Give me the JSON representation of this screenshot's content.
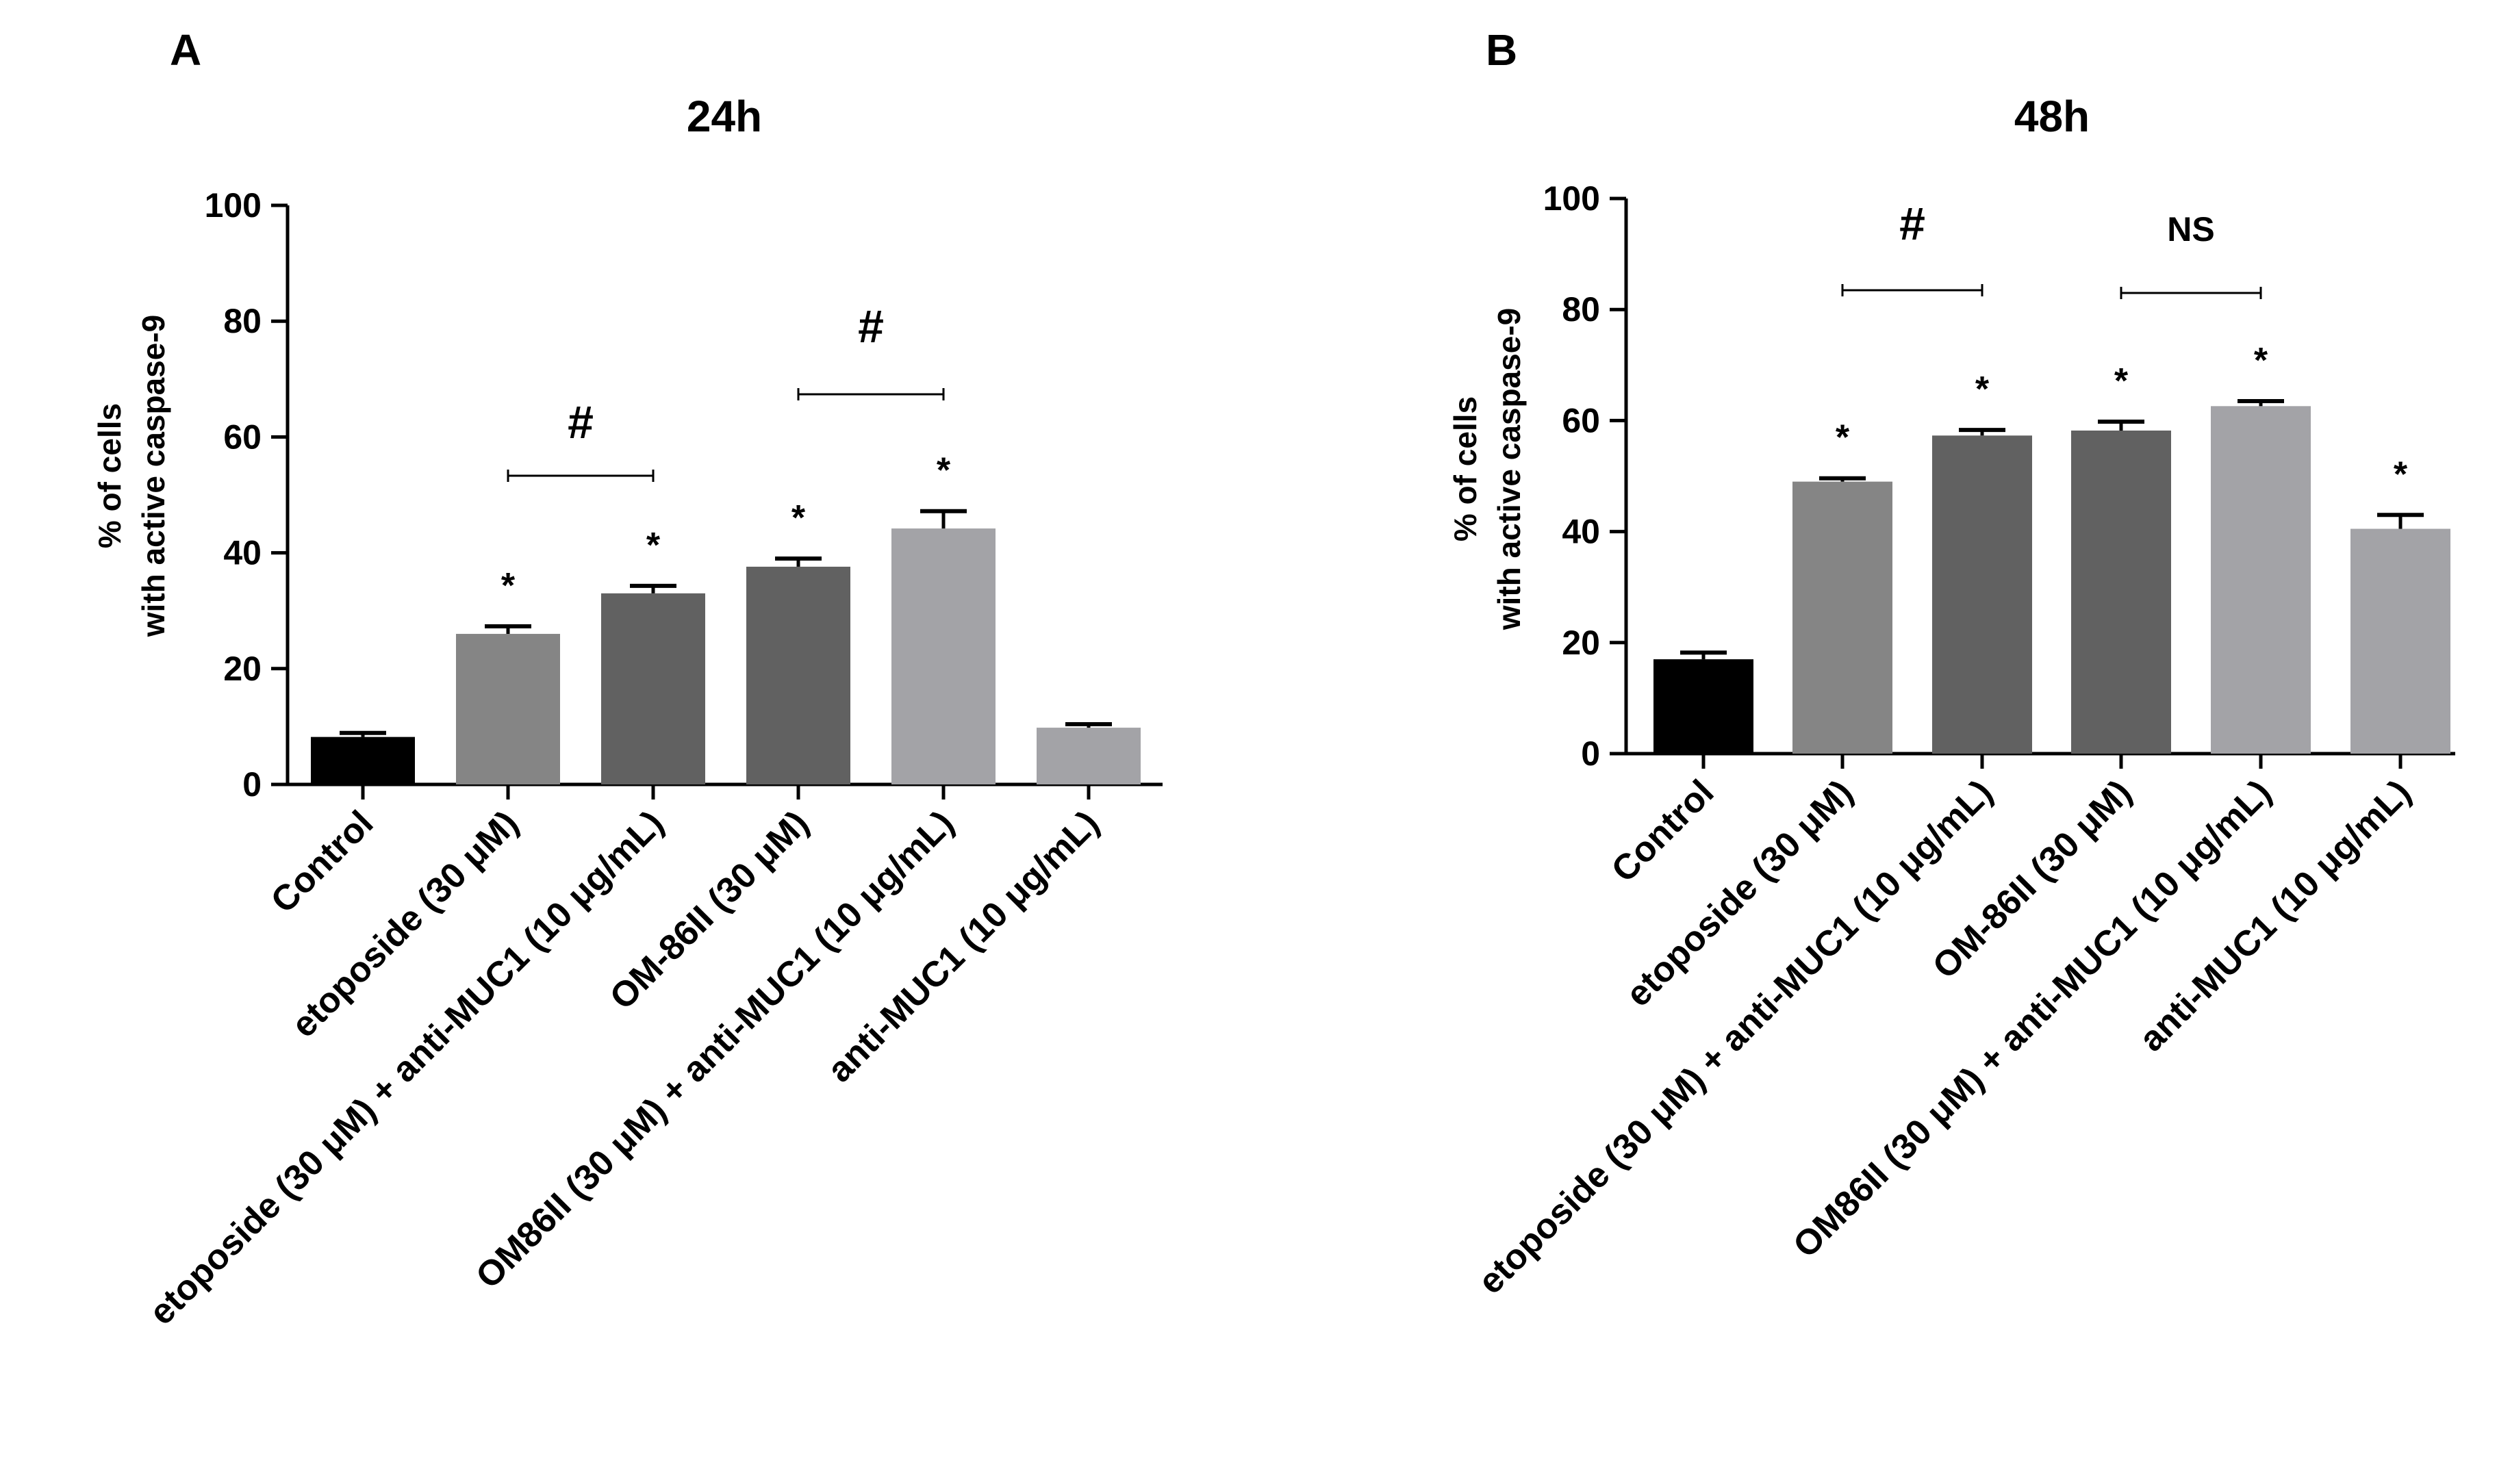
{
  "chart_data": [
    {
      "type": "bar",
      "panel": "A",
      "title": "24h",
      "ylabel": [
        "% of cells",
        "with active caspase-9"
      ],
      "xlabel": "",
      "ylim": [
        0,
        100
      ],
      "yticks": [
        0,
        20,
        40,
        60,
        80,
        100
      ],
      "categories": [
        "Control",
        "etoposide (30  μM)",
        "etoposide (30  μM) + anti-MUC1 (10  μg/mL)",
        "OM-86II (30  μM)",
        "OM86II (30  μM) + anti-MUC1 (10  μg/mL)",
        "anti-MUC1 (10  μg/mL)"
      ],
      "values": [
        8.2,
        26.0,
        33.0,
        37.6,
        44.2,
        9.8
      ],
      "errors": [
        0.7,
        1.3,
        1.3,
        1.4,
        3.0,
        0.6
      ],
      "colors": [
        "#000000",
        "#858585",
        "#616161",
        "#616161",
        "#a3a3a7",
        "#a3a3a7"
      ],
      "significance_stars": [
        "",
        "*",
        "*",
        "*",
        "*",
        ""
      ],
      "comparisons": [
        {
          "from": 1,
          "to": 2,
          "label": "#"
        },
        {
          "from": 3,
          "to": 4,
          "label": "#"
        }
      ]
    },
    {
      "type": "bar",
      "panel": "B",
      "title": "48h",
      "ylabel": [
        "% of cells",
        "with active caspase-9"
      ],
      "xlabel": "",
      "ylim": [
        0,
        100
      ],
      "yticks": [
        0,
        20,
        40,
        60,
        80,
        100
      ],
      "categories": [
        "Control",
        "etoposide (30  μM)",
        "etoposide (30  μM) + anti-MUC1 (10  μg/mL)",
        "OM-86II (30  μM)",
        "OM86II (30  μM) + anti-MUC1 (10  μg/mL)",
        "anti-MUC1 (10  μg/mL)"
      ],
      "values": [
        17.0,
        49.0,
        57.3,
        58.2,
        62.6,
        40.5
      ],
      "errors": [
        1.2,
        0.6,
        1.0,
        1.6,
        0.9,
        2.5
      ],
      "colors": [
        "#000000",
        "#858585",
        "#616161",
        "#616161",
        "#a3a3a7",
        "#a3a3a7"
      ],
      "significance_stars": [
        "",
        "*",
        "*",
        "*",
        "*",
        "*"
      ],
      "comparisons": [
        {
          "from": 1,
          "to": 2,
          "label": "#"
        },
        {
          "from": 3,
          "to": 4,
          "label": "NS"
        }
      ]
    }
  ]
}
